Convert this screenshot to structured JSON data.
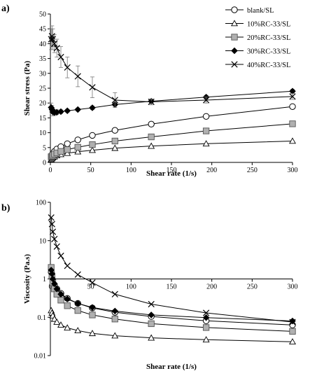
{
  "chart_data": [
    {
      "panel": "a)",
      "type": "line",
      "xlabel": "Shear rate (1/s)",
      "ylabel": "Shear stress (Pa)",
      "xlim": [
        0,
        300
      ],
      "ylim": [
        0,
        50
      ],
      "xticks": [
        0,
        50,
        100,
        150,
        200,
        250,
        300
      ],
      "yticks": [
        0,
        5,
        10,
        15,
        20,
        25,
        30,
        35,
        40,
        45,
        50
      ],
      "grid": false,
      "legend": "top-right",
      "series": [
        {
          "name": "blank/SL",
          "marker": "circle",
          "x": [
            1,
            2,
            3,
            5,
            8,
            13,
            21,
            34,
            52,
            80,
            125,
            193,
            300
          ],
          "y": [
            1.5,
            2.2,
            3.0,
            3.7,
            4.5,
            5.3,
            6.3,
            7.6,
            9.1,
            10.8,
            12.9,
            15.5,
            18.8
          ]
        },
        {
          "name": "10%RC-33/SL",
          "marker": "triangle",
          "x": [
            1,
            2,
            3,
            5,
            8,
            13,
            21,
            34,
            52,
            80,
            125,
            193,
            300
          ],
          "y": [
            1.0,
            1.3,
            1.6,
            1.9,
            2.3,
            2.7,
            3.1,
            3.6,
            4.1,
            4.8,
            5.5,
            6.3,
            7.2
          ]
        },
        {
          "name": "20%RC-33/SL",
          "marker": "square",
          "x": [
            1,
            2,
            3,
            5,
            8,
            13,
            21,
            34,
            52,
            80,
            125,
            193,
            300
          ],
          "y": [
            1.9,
            2.1,
            2.4,
            2.8,
            3.2,
            3.7,
            4.3,
            5.1,
            6.0,
            7.2,
            8.6,
            10.6,
            13.0
          ]
        },
        {
          "name": "30%RC-33/SL",
          "marker": "diamond",
          "x": [
            1,
            2,
            3,
            5,
            8,
            13,
            21,
            34,
            52,
            80,
            125,
            193,
            300
          ],
          "y": [
            18.5,
            17.8,
            17.0,
            16.8,
            16.9,
            17.1,
            17.4,
            17.8,
            18.4,
            19.5,
            20.6,
            22.0,
            24.0
          ],
          "err": [
            1.5,
            1.4,
            1.3,
            1.0,
            0.8,
            0.6,
            0.5,
            0.5,
            0.6,
            0.6,
            0.5,
            0.6,
            0.6
          ]
        },
        {
          "name": "40%RC-33/SL",
          "marker": "x",
          "x": [
            1,
            2,
            3,
            5,
            8,
            13,
            21,
            34,
            52,
            80,
            125,
            193,
            300
          ],
          "y": [
            41.5,
            42.5,
            41.5,
            40.0,
            38.5,
            35.5,
            32.0,
            29.0,
            25.3,
            21.0,
            20.4,
            21.0,
            22.2
          ],
          "err": [
            3.5,
            3.5,
            3.5,
            3.0,
            3.0,
            3.5,
            3.5,
            3.5,
            3.5,
            2.5,
            1.0,
            1.0,
            1.0
          ]
        }
      ]
    },
    {
      "panel": "b)",
      "type": "line",
      "xlabel": "Shear rate (1/s)",
      "ylabel": "Viscosity (Pa.s)",
      "xlim": [
        0,
        300
      ],
      "ylim": [
        0.01,
        100
      ],
      "yscale": "log",
      "xticks": [
        0,
        50,
        100,
        150,
        200,
        250,
        300
      ],
      "yticks": [
        0.01,
        0.1,
        1,
        10,
        100
      ],
      "grid": false,
      "series": [
        {
          "name": "blank/SL",
          "marker": "circle",
          "x": [
            1,
            2,
            3,
            5,
            8,
            13,
            21,
            34,
            52,
            80,
            125,
            193,
            300
          ],
          "y": [
            1.5,
            1.1,
            0.9,
            0.7,
            0.55,
            0.42,
            0.31,
            0.23,
            0.175,
            0.135,
            0.105,
            0.081,
            0.063
          ]
        },
        {
          "name": "10%RC-33/SL",
          "marker": "triangle",
          "x": [
            1,
            2,
            3,
            5,
            8,
            13,
            21,
            34,
            52,
            80,
            125,
            193,
            300
          ],
          "y": [
            0.15,
            0.13,
            0.11,
            0.09,
            0.075,
            0.063,
            0.053,
            0.045,
            0.038,
            0.033,
            0.029,
            0.026,
            0.023
          ]
        },
        {
          "name": "20%RC-33/SL",
          "marker": "square",
          "x": [
            1,
            2,
            3,
            5,
            8,
            13,
            21,
            34,
            52,
            80,
            125,
            193,
            300
          ],
          "y": [
            2.0,
            1.2,
            0.8,
            0.55,
            0.4,
            0.28,
            0.2,
            0.15,
            0.115,
            0.09,
            0.068,
            0.054,
            0.043
          ]
        },
        {
          "name": "30%RC-33/SL",
          "marker": "diamond",
          "x": [
            1,
            2,
            3,
            5,
            8,
            13,
            21,
            34,
            52,
            80,
            125,
            193,
            300
          ],
          "y": [
            1.7,
            1.35,
            1.0,
            0.75,
            0.55,
            0.4,
            0.3,
            0.23,
            0.18,
            0.145,
            0.115,
            0.098,
            0.08
          ]
        },
        {
          "name": "40%RC-33/SL",
          "marker": "x",
          "x": [
            1,
            2,
            3,
            5,
            8,
            13,
            21,
            34,
            52,
            80,
            125,
            193,
            300
          ],
          "y": [
            40,
            27,
            17,
            11,
            7,
            4,
            2.2,
            1.3,
            0.8,
            0.4,
            0.22,
            0.13,
            0.075
          ]
        }
      ]
    }
  ]
}
